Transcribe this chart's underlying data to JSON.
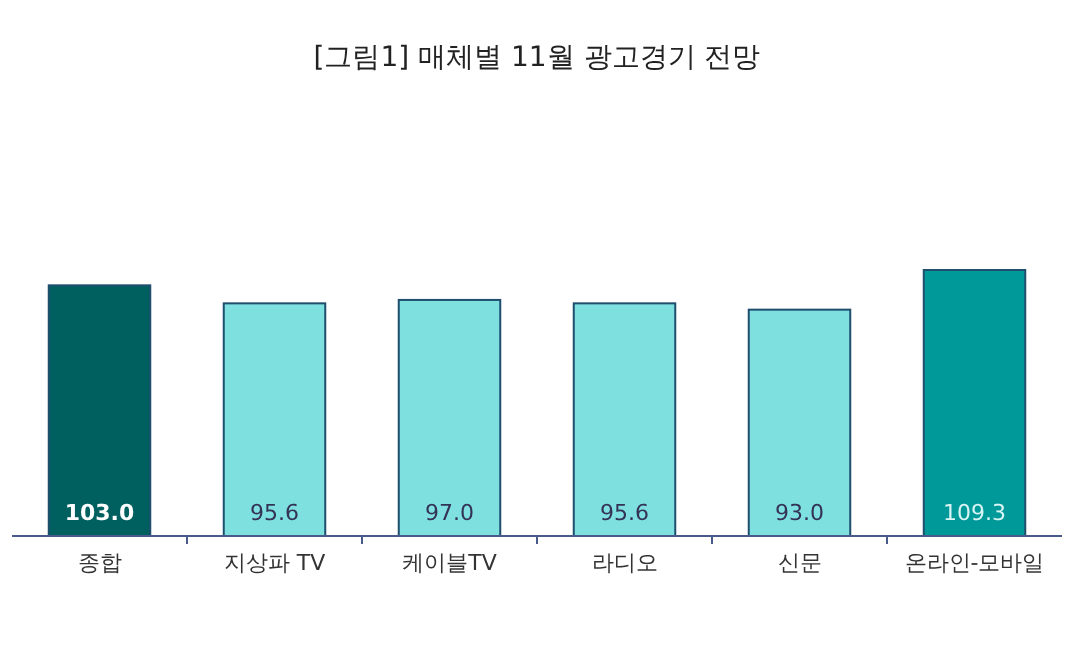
{
  "chart_data": {
    "type": "bar",
    "title": "[그림1] 매체별 11월 광고경기 전망",
    "categories": [
      "종합",
      "지상파 TV",
      "케이블TV",
      "라디오",
      "신문",
      "온라인-모바일"
    ],
    "values": [
      103.0,
      95.6,
      97.0,
      95.6,
      93.0,
      109.3
    ],
    "value_labels": [
      "103.0",
      "95.6",
      "97.0",
      "95.6",
      "93.0",
      "109.3"
    ],
    "colors": [
      "#00605f",
      "#7fe0e0",
      "#7fe0e0",
      "#7fe0e0",
      "#7fe0e0",
      "#009999"
    ]
  }
}
